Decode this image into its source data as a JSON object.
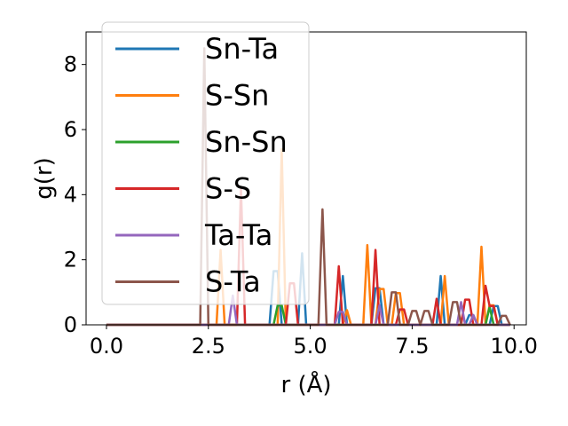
{
  "chart_data": {
    "type": "line",
    "title": "",
    "xlabel": "r (Å)",
    "ylabel": "g(r)",
    "xlim": [
      -0.5,
      10.3
    ],
    "ylim": [
      0,
      9.0
    ],
    "xticks": [
      0.0,
      2.5,
      5.0,
      7.5,
      10.0
    ],
    "xtick_labels": [
      "0.0",
      "2.5",
      "5.0",
      "7.5",
      "10.0"
    ],
    "yticks": [
      0,
      2,
      4,
      6,
      8
    ],
    "ytick_labels": [
      "0",
      "2",
      "4",
      "6",
      "8"
    ],
    "grid": false,
    "legend_position": "upper-left",
    "series": [
      {
        "name": "Sn-Ta",
        "color": "#1f77b4",
        "peaks": [
          [
            4.15,
            3.3
          ],
          [
            4.8,
            2.2
          ],
          [
            5.8,
            1.5
          ],
          [
            6.65,
            2.25
          ],
          [
            8.2,
            1.5
          ],
          [
            8.95,
            0.6
          ],
          [
            9.55,
            1.15
          ]
        ]
      },
      {
        "name": "S-Sn",
        "color": "#ff7f0e",
        "peaks": [
          [
            2.8,
            2.3
          ],
          [
            4.3,
            5.4
          ],
          [
            5.9,
            0.45
          ],
          [
            6.4,
            2.45
          ],
          [
            6.75,
            2.2
          ],
          [
            7.15,
            1.95
          ],
          [
            8.3,
            1.5
          ],
          [
            9.2,
            2.4
          ],
          [
            9.45,
            1.2
          ]
        ]
      },
      {
        "name": "Sn-Sn",
        "color": "#2ca02c",
        "peaks": [
          [
            4.25,
            1.2
          ],
          [
            9.4,
            0.55
          ]
        ]
      },
      {
        "name": "S-S",
        "color": "#d62728",
        "peaks": [
          [
            3.3,
            4.2
          ],
          [
            4.55,
            2.55
          ],
          [
            5.7,
            1.8
          ],
          [
            6.6,
            2.3
          ],
          [
            7.25,
            0.95
          ],
          [
            8.1,
            0.8
          ],
          [
            8.85,
            1.55
          ],
          [
            9.3,
            1.2
          ],
          [
            9.45,
            1.15
          ]
        ]
      },
      {
        "name": "Ta-Ta",
        "color": "#9467bd",
        "peaks": [
          [
            3.1,
            0.9
          ],
          [
            5.75,
            0.8
          ],
          [
            6.7,
            0.6
          ],
          [
            8.7,
            0.7
          ],
          [
            9.0,
            0.3
          ]
        ]
      },
      {
        "name": "S-Ta",
        "color": "#8c564b",
        "peaks": [
          [
            2.4,
            8.5
          ],
          [
            5.3,
            3.55
          ],
          [
            7.05,
            2.0
          ],
          [
            7.55,
            0.85
          ],
          [
            7.85,
            0.85
          ],
          [
            8.55,
            1.4
          ],
          [
            9.75,
            0.55
          ]
        ]
      }
    ]
  }
}
